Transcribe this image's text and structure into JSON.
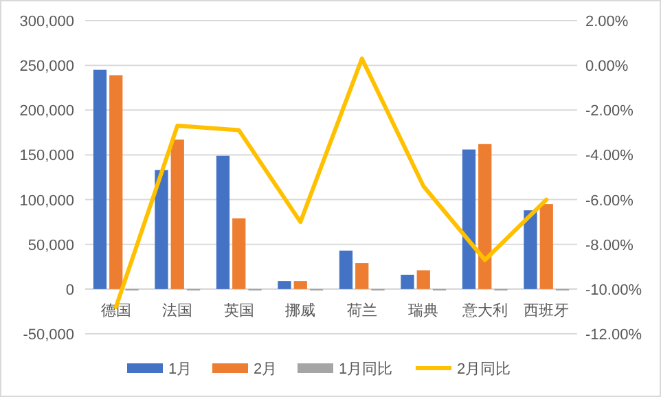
{
  "chart_data": {
    "type": "bar",
    "categories": [
      "德国",
      "法国",
      "英国",
      "挪威",
      "荷兰",
      "瑞典",
      "意大利",
      "西班牙"
    ],
    "series": [
      {
        "name": "1月",
        "color": "#4472c4",
        "values": [
          245000,
          133000,
          149000,
          9000,
          43000,
          16000,
          156000,
          88000
        ]
      },
      {
        "name": "2月",
        "color": "#ed7d31",
        "values": [
          239000,
          167000,
          79000,
          9000,
          29000,
          21000,
          162000,
          95000
        ]
      },
      {
        "name": "1月同比",
        "color": "#a5a5a5",
        "values": [
          0,
          0,
          0,
          0,
          0,
          0,
          0,
          0
        ]
      },
      {
        "name": "2月同比",
        "color": "#ffc000",
        "type": "line",
        "axis": "y2",
        "values": [
          -10.8,
          -2.7,
          -2.9,
          -7.0,
          0.3,
          -5.4,
          -8.7,
          -6.0
        ]
      }
    ],
    "ylim": [
      -50000,
      300000
    ],
    "yticks": [
      {
        "value": -50000,
        "label": "-50,000"
      },
      0,
      {
        "value": 50000,
        "label": "50,000"
      },
      {
        "value": 100000,
        "label": "100,000"
      },
      {
        "value": 150000,
        "label": "150,000"
      },
      {
        "value": 200000,
        "label": "200,000"
      },
      {
        "value": 250000,
        "label": "250,000"
      },
      {
        "value": 300000,
        "label": "300,000"
      }
    ],
    "y2lim": [
      -12,
      2
    ],
    "y2ticks": [
      {
        "value": -12,
        "label": "-12.00%"
      },
      {
        "value": -10,
        "label": "-10.00%"
      },
      {
        "value": -8,
        "label": "-8.00%"
      },
      {
        "value": -6,
        "label": "-6.00%"
      },
      {
        "value": -4,
        "label": "-4.00%"
      },
      {
        "value": -2,
        "label": "-2.00%"
      },
      {
        "value": 0,
        "label": "0.00%"
      },
      {
        "value": 2,
        "label": "2.00%"
      }
    ],
    "grid": "y",
    "legend": "bottom"
  }
}
